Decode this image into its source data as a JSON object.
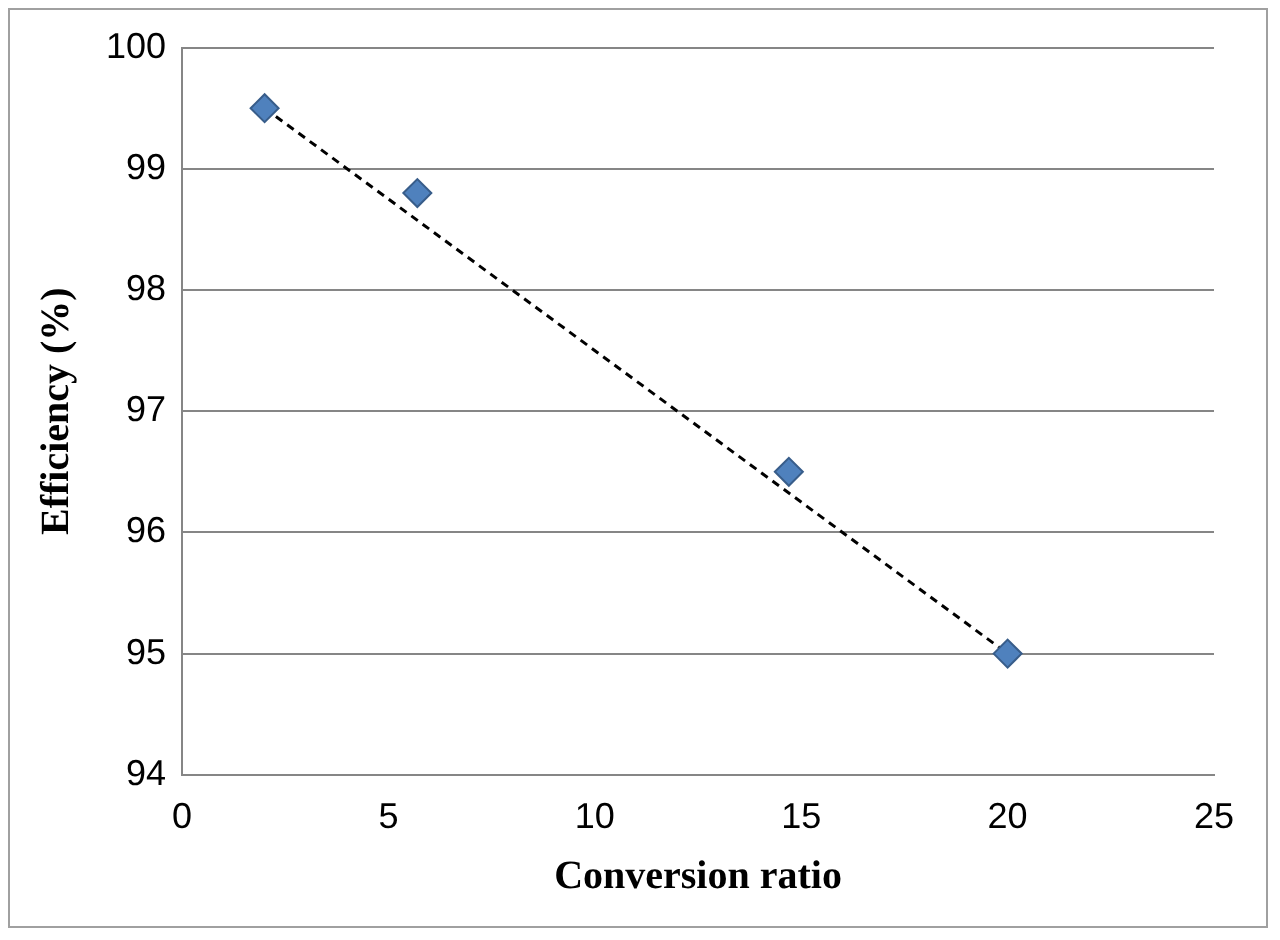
{
  "chart_data": {
    "type": "scatter",
    "xlabel": "Conversion ratio",
    "ylabel": "Efficiency (%)",
    "xlim": [
      0,
      25
    ],
    "xticks": [
      0,
      5,
      10,
      15,
      20,
      25
    ],
    "ylim": [
      94,
      100
    ],
    "yticks": [
      94,
      95,
      96,
      97,
      98,
      99,
      100
    ],
    "grid": "y",
    "legend": false,
    "marker": "diamond",
    "series": [
      {
        "color": "#4f81bd",
        "x": [
          2,
          5.7,
          14.7,
          20
        ],
        "values": [
          99.5,
          98.8,
          96.5,
          95.0
        ]
      },
      {
        "type": "line",
        "color": "#000000",
        "x": [
          2,
          20
        ],
        "values": [
          99.5,
          95.0
        ],
        "marker": "none",
        "line_style": "dashed"
      }
    ]
  }
}
